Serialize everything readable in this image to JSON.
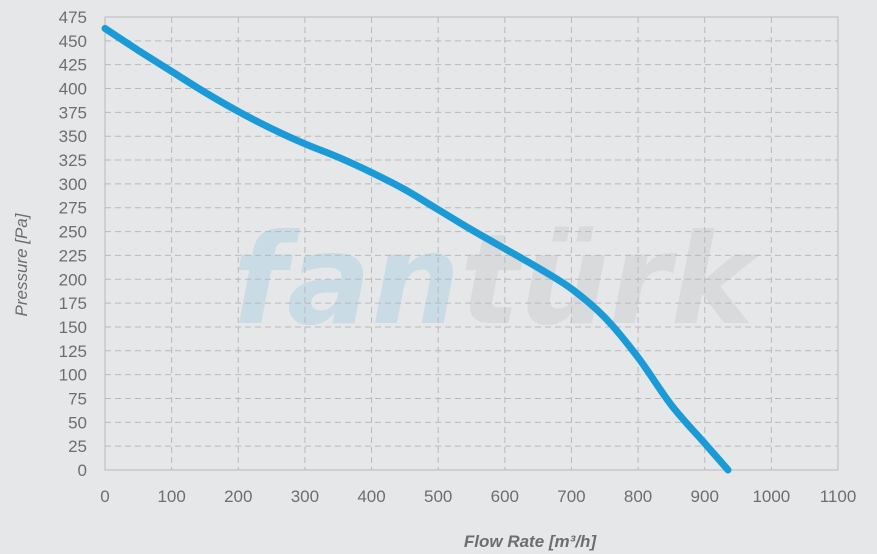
{
  "chart_data": {
    "type": "line",
    "title": "",
    "xlabel": "Flow Rate [m³/h]",
    "ylabel": "Pressure [Pa]",
    "xlim": [
      0,
      1100
    ],
    "ylim": [
      0,
      475
    ],
    "x_ticks": [
      0,
      100,
      200,
      300,
      400,
      500,
      600,
      700,
      800,
      900,
      1000,
      1100
    ],
    "y_ticks": [
      0,
      25,
      50,
      75,
      100,
      125,
      150,
      175,
      200,
      225,
      250,
      275,
      300,
      325,
      350,
      375,
      400,
      425,
      450,
      475
    ],
    "grid": true,
    "legend": "none",
    "series": [
      {
        "color": "#1a9bd7",
        "points": [
          [
            0,
            463
          ],
          [
            50,
            440
          ],
          [
            100,
            418
          ],
          [
            150,
            396
          ],
          [
            200,
            376
          ],
          [
            250,
            358
          ],
          [
            300,
            342
          ],
          [
            350,
            328
          ],
          [
            400,
            312
          ],
          [
            450,
            294
          ],
          [
            500,
            273
          ],
          [
            550,
            252
          ],
          [
            600,
            232
          ],
          [
            650,
            212
          ],
          [
            700,
            190
          ],
          [
            750,
            160
          ],
          [
            800,
            118
          ],
          [
            850,
            68
          ],
          [
            900,
            28
          ],
          [
            935,
            0
          ]
        ]
      }
    ]
  },
  "watermark": {
    "part1": "fan",
    "part2": "türk",
    "color1": "#c9dbe4",
    "color2": "#d9dadb"
  },
  "colors": {
    "background": "#e6e7e8",
    "grid": "#b9babc",
    "text": "#6d6e71"
  }
}
